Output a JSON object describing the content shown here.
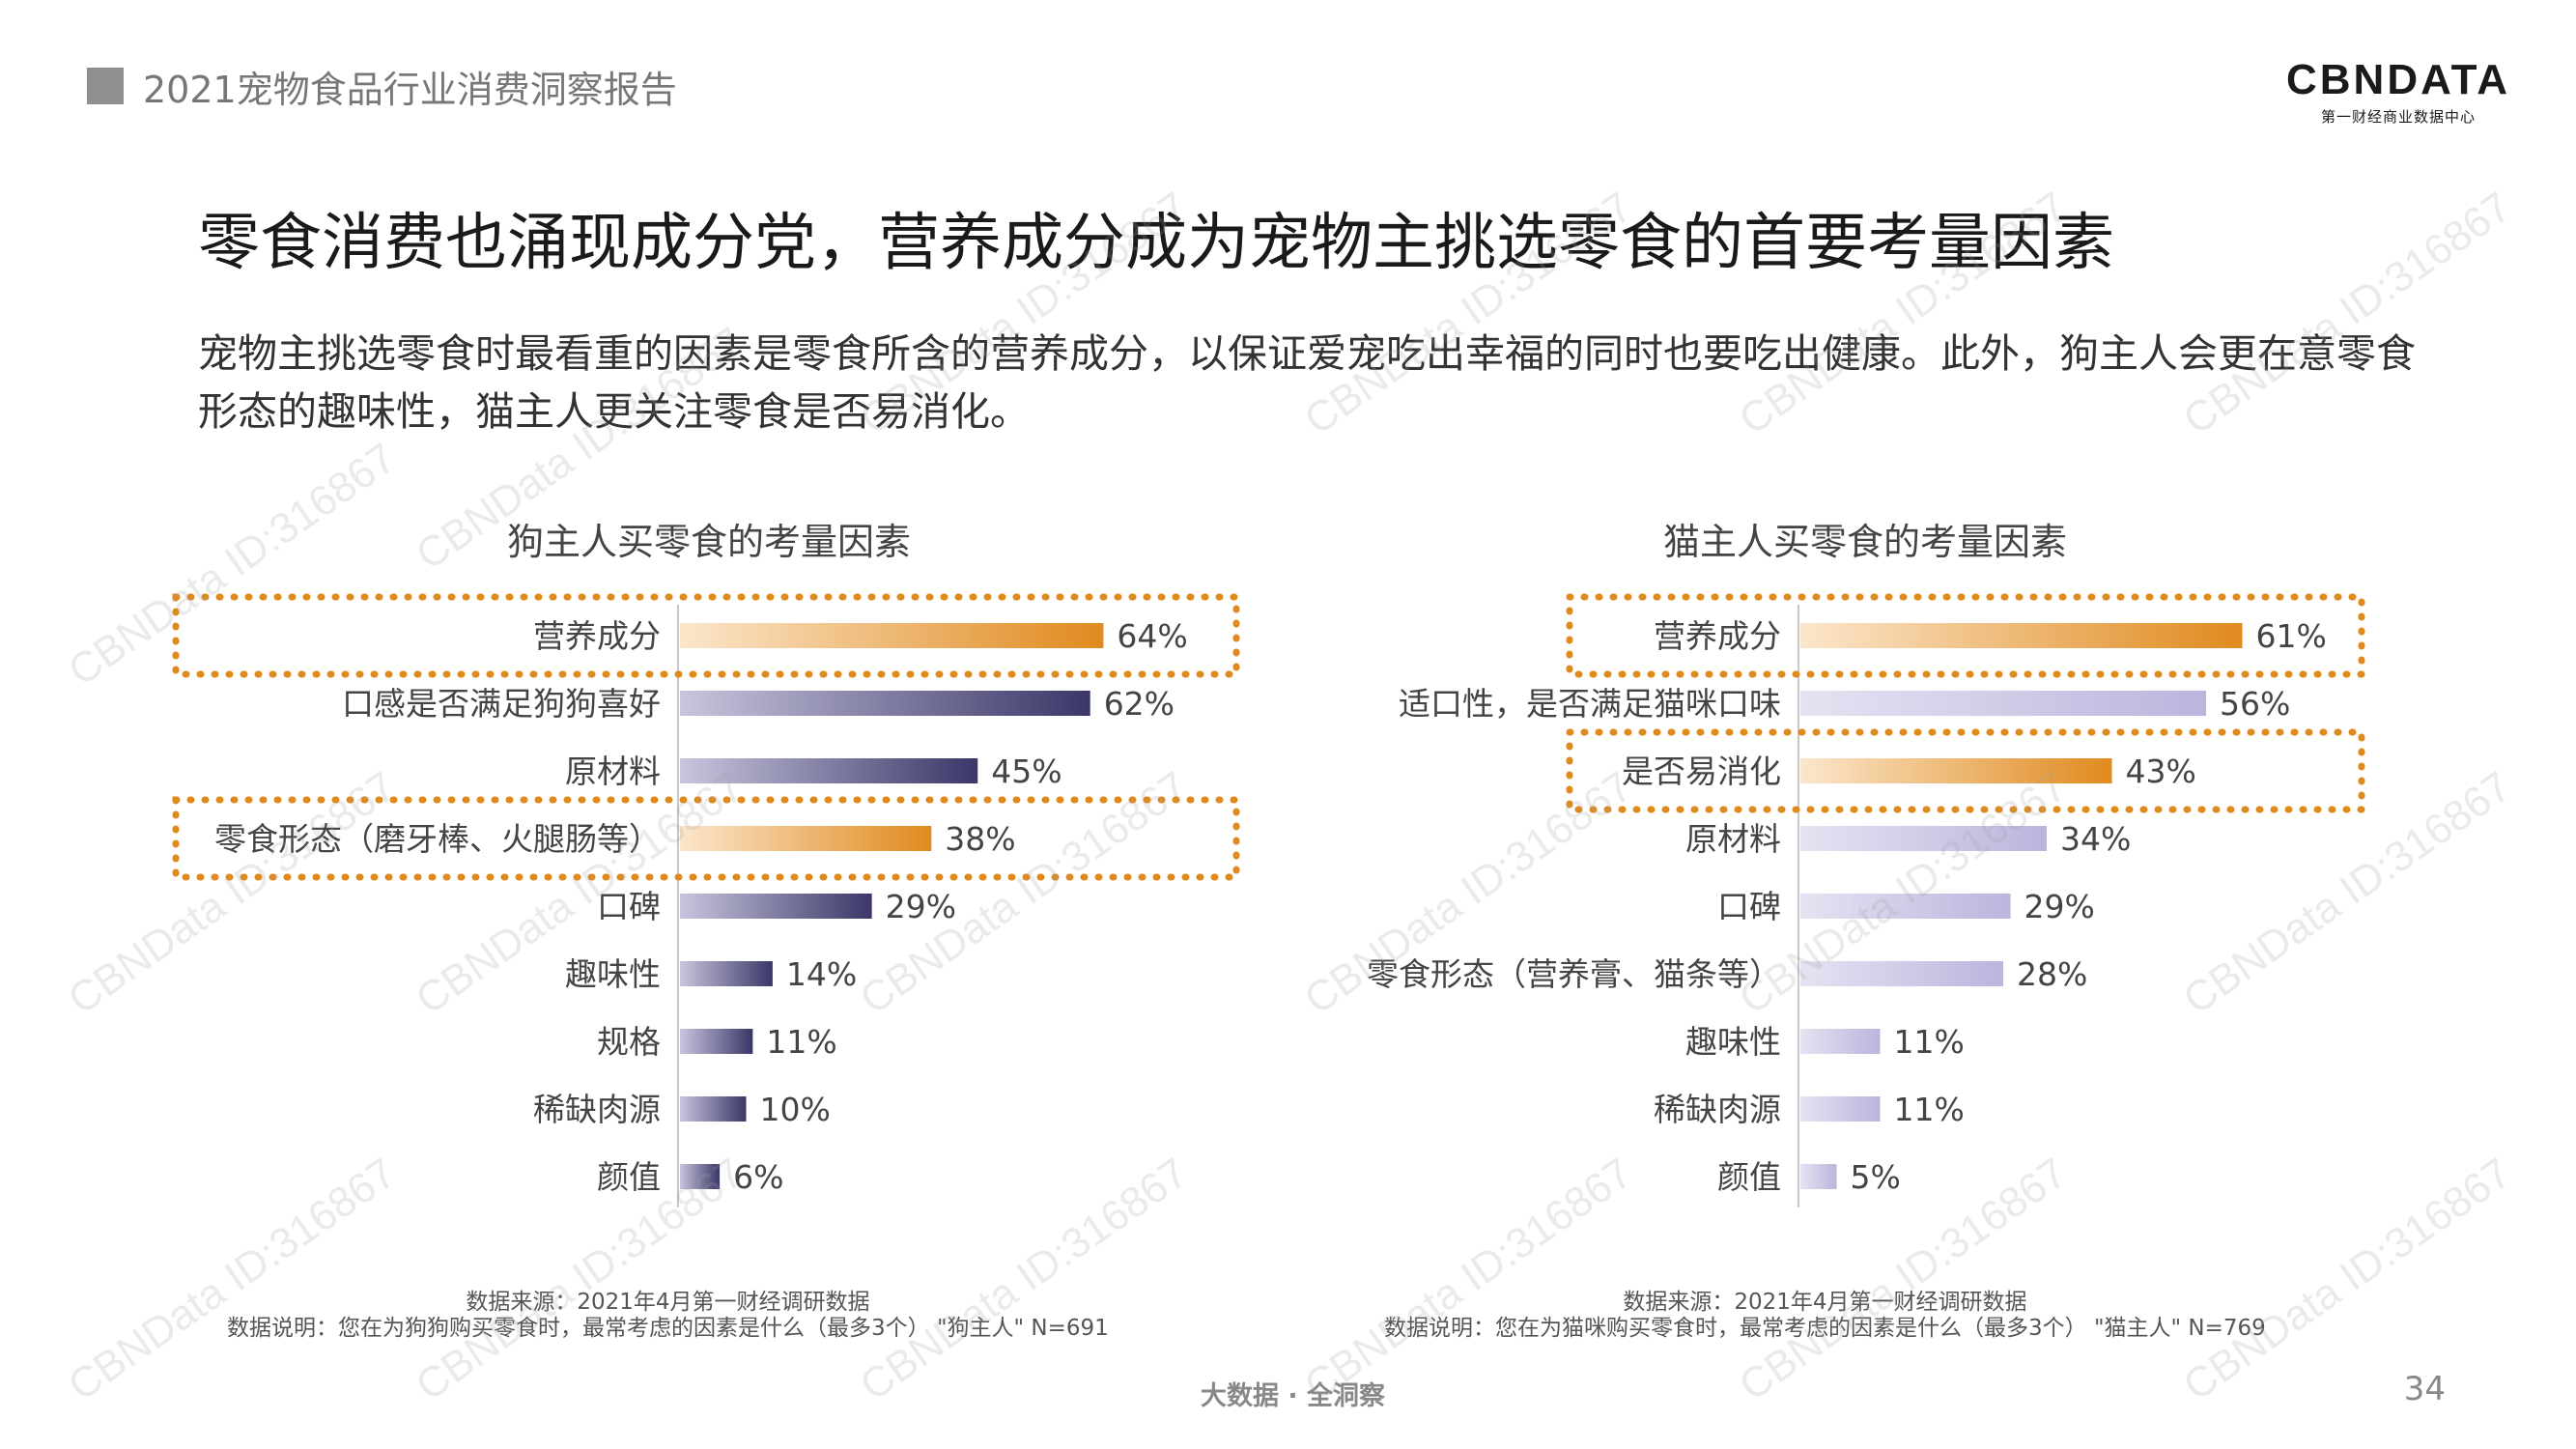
{
  "header": {
    "report_title": "2021宠物食品行业消费洞察报告",
    "logo_main": "CBNDATA",
    "logo_sub": "第一财经商业数据中心"
  },
  "headline": "零食消费也涌现成分党，营养成分成为宠物主挑选零食的首要考量因素",
  "description": "宠物主挑选零食时最看重的因素是零食所含的营养成分，以保证爱宠吃出幸福的同时也要吃出健康。此外，狗主人会更在意零食形态的趣味性，猫主人更关注零食是否易消化。",
  "chart_data": [
    {
      "type": "bar",
      "orientation": "horizontal",
      "title": "狗主人买零食的考量因素",
      "categories": [
        "营养成分",
        "口感是否满足狗狗喜好",
        "原材料",
        "零食形态（磨牙棒、火腿肠等）",
        "口碑",
        "趣味性",
        "规格",
        "稀缺肉源",
        "颜值"
      ],
      "values": [
        64,
        62,
        45,
        38,
        29,
        14,
        11,
        10,
        6
      ],
      "value_labels": [
        "64%",
        "62%",
        "45%",
        "38%",
        "29%",
        "14%",
        "11%",
        "10%",
        "6%"
      ],
      "highlighted": [
        "营养成分",
        "零食形态（磨牙棒、火腿肠等）"
      ],
      "xlim": [
        0,
        100
      ],
      "unit": "%",
      "colors": {
        "bar": "#3a3768",
        "highlight": "#e08a1e",
        "box": "#e08a1e"
      },
      "source": "数据来源：2021年4月第一财经调研数据",
      "note": "数据说明：您在为狗狗购买零食时，最常考虑的因素是什么（最多3个）  \"狗主人\" N=691"
    },
    {
      "type": "bar",
      "orientation": "horizontal",
      "title": "猫主人买零食的考量因素",
      "categories": [
        "营养成分",
        "适口性，是否满足猫咪口味",
        "是否易消化",
        "原材料",
        "口碑",
        "零食形态（营养膏、猫条等）",
        "趣味性",
        "稀缺肉源",
        "颜值"
      ],
      "values": [
        61,
        56,
        43,
        34,
        29,
        28,
        11,
        11,
        5
      ],
      "value_labels": [
        "61%",
        "56%",
        "43%",
        "34%",
        "29%",
        "28%",
        "11%",
        "11%",
        "5%"
      ],
      "highlighted": [
        "营养成分",
        "是否易消化"
      ],
      "xlim": [
        0,
        100
      ],
      "unit": "%",
      "colors": {
        "bar": "#c4bde2",
        "highlight": "#e08a1e",
        "box": "#e08a1e"
      },
      "source": "数据来源：2021年4月第一财经调研数据",
      "note": "数据说明：您在为猫咪购买零食时，最常考虑的因素是什么（最多3个）  \"猫主人\" N=769"
    }
  ],
  "footer": {
    "tagline": "大数据 · 全洞察",
    "page_number": "34"
  },
  "watermark": "CBNData ID:316867"
}
